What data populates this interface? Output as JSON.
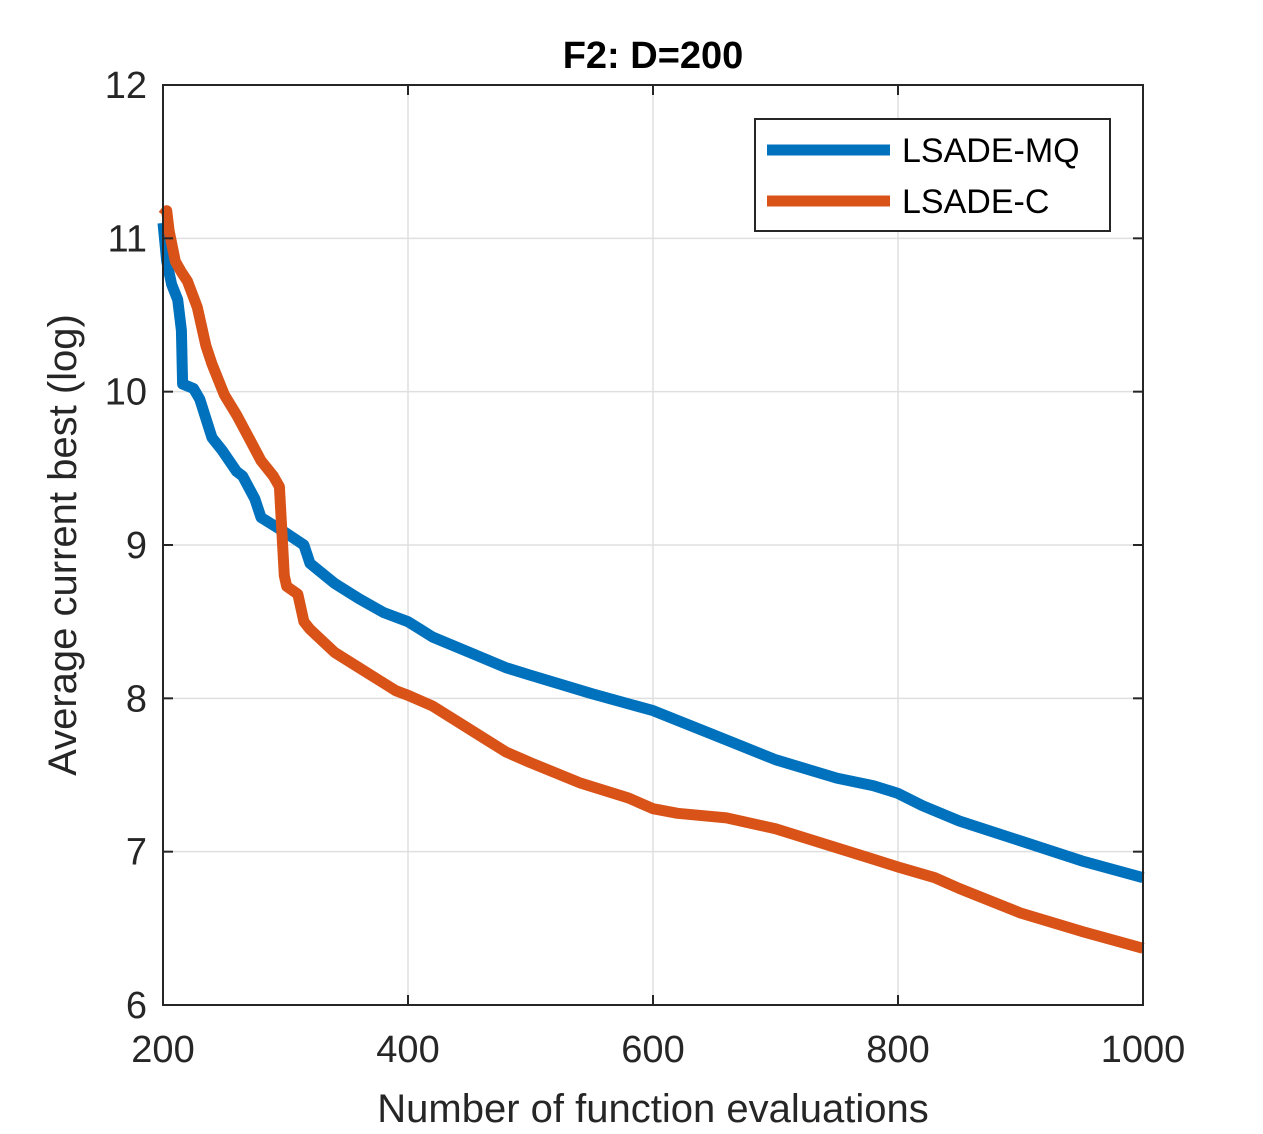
{
  "chart_data": {
    "type": "line",
    "title": "F2: D=200",
    "xlabel": "Number of function evaluations",
    "ylabel": "Average current best (log)",
    "xlim": [
      200,
      1000
    ],
    "ylim": [
      6,
      12
    ],
    "xticks": [
      200,
      400,
      600,
      800,
      1000
    ],
    "yticks": [
      6,
      7,
      8,
      9,
      10,
      11,
      12
    ],
    "xtick_labels": [
      "200",
      "400",
      "600",
      "800",
      "1000"
    ],
    "ytick_labels": [
      "6",
      "7",
      "8",
      "9",
      "10",
      "11",
      "12"
    ],
    "grid": true,
    "legend_position": "top-right",
    "series": [
      {
        "name": "LSADE-MQ",
        "color": "#0072bd",
        "x": [
          200,
          203,
          207,
          212,
          215,
          216,
          225,
          230,
          240,
          248,
          260,
          265,
          275,
          280,
          300,
          315,
          320,
          340,
          360,
          380,
          400,
          410,
          420,
          450,
          480,
          500,
          550,
          600,
          650,
          700,
          750,
          780,
          800,
          820,
          850,
          900,
          950,
          1000
        ],
        "y": [
          11.1,
          10.85,
          10.7,
          10.6,
          10.4,
          10.05,
          10.02,
          9.95,
          9.7,
          9.62,
          9.48,
          9.45,
          9.3,
          9.18,
          9.08,
          9.0,
          8.88,
          8.75,
          8.65,
          8.56,
          8.5,
          8.45,
          8.4,
          8.3,
          8.2,
          8.15,
          8.03,
          7.92,
          7.76,
          7.6,
          7.48,
          7.43,
          7.38,
          7.3,
          7.2,
          7.07,
          6.94,
          6.83
        ]
      },
      {
        "name": "LSADE-C",
        "color": "#d95319",
        "x": [
          200,
          203,
          205,
          210,
          215,
          220,
          228,
          235,
          240,
          250,
          260,
          270,
          280,
          290,
          295,
          299,
          301,
          310,
          315,
          320,
          340,
          360,
          380,
          390,
          400,
          420,
          440,
          460,
          480,
          500,
          540,
          580,
          600,
          620,
          660,
          700,
          740,
          780,
          800,
          830,
          850,
          900,
          950,
          1000
        ],
        "y": [
          11.15,
          11.18,
          11.05,
          10.85,
          10.78,
          10.72,
          10.55,
          10.3,
          10.18,
          9.98,
          9.85,
          9.7,
          9.55,
          9.45,
          9.38,
          8.8,
          8.73,
          8.68,
          8.5,
          8.45,
          8.3,
          8.2,
          8.1,
          8.05,
          8.02,
          7.95,
          7.85,
          7.75,
          7.65,
          7.58,
          7.45,
          7.35,
          7.28,
          7.25,
          7.22,
          7.15,
          7.05,
          6.95,
          6.9,
          6.83,
          6.76,
          6.6,
          6.48,
          6.37
        ]
      }
    ]
  }
}
